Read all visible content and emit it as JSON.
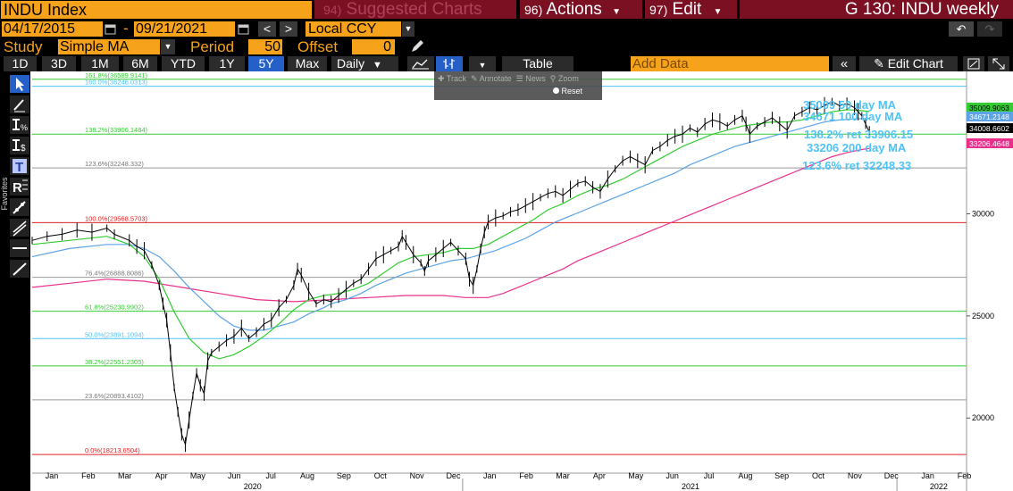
{
  "header": {
    "security": "INDU Index",
    "suggested_num": "94)",
    "suggested_label": "Suggested Charts",
    "actions_num": "96)",
    "actions_label": "Actions",
    "edit_num": "97)",
    "edit_label": "Edit",
    "chart_title": "G 130: INDU weekly"
  },
  "range": {
    "start_date": "04/17/2015",
    "separator": "-",
    "end_date": "09/21/2021",
    "currency": "Local CCY"
  },
  "study": {
    "study_label": "Study",
    "study_value": "Simple MA",
    "period_label": "Period",
    "period_value": "50",
    "offset_label": "Offset",
    "offset_value": "0"
  },
  "toolbar": {
    "tabs": [
      "1D",
      "3D",
      "1M",
      "6M",
      "YTD",
      "1Y",
      "5Y",
      "Max"
    ],
    "selected_tab": "5Y",
    "frequency": "Daily",
    "table_label": "Table",
    "add_data_placeholder": "Add Data",
    "edit_chart_label": "Edit Chart"
  },
  "popup": {
    "items": [
      "Track",
      "Annotate",
      "News",
      "Zoom"
    ],
    "reset_label": "Reset"
  },
  "side_tools": {
    "favorites_label": "Favorites",
    "tools": [
      "cursor",
      "line",
      "percent-change",
      "dollar-change",
      "text",
      "regression",
      "trend",
      "multi-line",
      "horizontal-line",
      "diagonal-line"
    ]
  },
  "chart_data": {
    "type": "line",
    "series": [
      {
        "name": "INDU Index",
        "color": "#000000"
      },
      {
        "name": "50 day MA",
        "color": "#33cc33"
      },
      {
        "name": "100 day MA",
        "color": "#5ba3e6"
      },
      {
        "name": "200 day MA",
        "color": "#e8308c"
      }
    ],
    "y_ticks": [
      "30000",
      "25000",
      "20000"
    ],
    "ylim": [
      17300,
      36800
    ],
    "x_months": [
      "Jan",
      "Feb",
      "Mar",
      "Apr",
      "May",
      "Jun",
      "Jul",
      "Aug",
      "Sep",
      "Oct",
      "Nov",
      "Dec",
      "Jan",
      "Feb",
      "Mar",
      "Apr",
      "May",
      "Jun",
      "Jul",
      "Aug",
      "Sep",
      "Oct",
      "Nov",
      "Dec",
      "Jan",
      "Feb"
    ],
    "x_years": [
      "2020",
      "2021",
      "2022"
    ],
    "fib_levels": [
      {
        "label": "161.8%(36589.9141)",
        "value": 36590,
        "color": "#33cc33"
      },
      {
        "label": "160.0%(36246.0313)",
        "value": 36246,
        "color": "#4fc3f7"
      },
      {
        "label": "138.2%(33906.1484)",
        "value": 33906,
        "color": "#33cc33"
      },
      {
        "label": "123.6%(32248.332)",
        "value": 32248,
        "color": "#999999"
      },
      {
        "label": "100.0%(29568.5703)",
        "value": 29569,
        "color": "#e02020"
      },
      {
        "label": "76.4%(26888.8086)",
        "value": 26889,
        "color": "#999999"
      },
      {
        "label": "61.8%(25230.9902)",
        "value": 25231,
        "color": "#33cc33"
      },
      {
        "label": "50.0%(23891.1094)",
        "value": 23891,
        "color": "#4fc3f7"
      },
      {
        "label": "38.2%(22551.2305)",
        "value": 22551,
        "color": "#33cc33"
      },
      {
        "label": "23.6%(20893.4102)",
        "value": 20893,
        "color": "#999999"
      },
      {
        "label": "0.0%(18213.6504)",
        "value": 18214,
        "color": "#e02020"
      }
    ],
    "annotations": [
      "35009 50 day MA",
      "34671 100 day MA",
      "138.2% ret 33906.15",
      "33206 200 day MA",
      "123.6% ret 32248.33"
    ],
    "last_values": [
      {
        "label": "35009.9063",
        "color": "#33cc33"
      },
      {
        "label": "34671.2148",
        "color": "#5ba3e6"
      },
      {
        "label": "34008.6602",
        "color": "#000000"
      },
      {
        "label": "33206.4648",
        "color": "#e8308c"
      }
    ],
    "price_points": [
      [
        0,
        28700
      ],
      [
        4,
        28900
      ],
      [
        8,
        29000
      ],
      [
        12,
        29200
      ],
      [
        16,
        29100
      ],
      [
        20,
        29300
      ],
      [
        22,
        29000
      ],
      [
        26,
        28700
      ],
      [
        28,
        28400
      ],
      [
        30,
        28200
      ],
      [
        32,
        27500
      ],
      [
        34,
        26500
      ],
      [
        35,
        25600
      ],
      [
        36,
        24800
      ],
      [
        37,
        23200
      ],
      [
        38,
        21500
      ],
      [
        39,
        20300
      ],
      [
        40,
        19200
      ],
      [
        41,
        18700
      ],
      [
        42,
        19900
      ],
      [
        43,
        21100
      ],
      [
        44,
        22200
      ],
      [
        45,
        21600
      ],
      [
        46,
        21200
      ],
      [
        47,
        22800
      ],
      [
        48,
        23200
      ],
      [
        50,
        23500
      ],
      [
        52,
        23800
      ],
      [
        54,
        24000
      ],
      [
        56,
        24400
      ],
      [
        58,
        23900
      ],
      [
        60,
        24200
      ],
      [
        62,
        24600
      ],
      [
        64,
        24800
      ],
      [
        66,
        25400
      ],
      [
        68,
        25800
      ],
      [
        70,
        26500
      ],
      [
        71,
        27300
      ],
      [
        72,
        27000
      ],
      [
        74,
        26200
      ],
      [
        76,
        25600
      ],
      [
        78,
        25800
      ],
      [
        80,
        25700
      ],
      [
        82,
        26000
      ],
      [
        84,
        26300
      ],
      [
        86,
        26600
      ],
      [
        88,
        26800
      ],
      [
        90,
        27300
      ],
      [
        92,
        27800
      ],
      [
        94,
        28000
      ],
      [
        96,
        28200
      ],
      [
        98,
        28400
      ],
      [
        99,
        28900
      ],
      [
        100,
        28600
      ],
      [
        102,
        28000
      ],
      [
        104,
        27600
      ],
      [
        105,
        27200
      ],
      [
        106,
        27700
      ],
      [
        108,
        28000
      ],
      [
        110,
        28300
      ],
      [
        112,
        28600
      ],
      [
        114,
        28200
      ],
      [
        116,
        27800
      ],
      [
        117,
        26800
      ],
      [
        118,
        26500
      ],
      [
        119,
        27300
      ],
      [
        120,
        28300
      ],
      [
        121,
        29100
      ],
      [
        122,
        29600
      ],
      [
        124,
        29800
      ],
      [
        126,
        29900
      ],
      [
        128,
        30100
      ],
      [
        130,
        30200
      ],
      [
        132,
        30400
      ],
      [
        134,
        30600
      ],
      [
        136,
        30800
      ],
      [
        138,
        31000
      ],
      [
        140,
        31100
      ],
      [
        142,
        30900
      ],
      [
        144,
        31200
      ],
      [
        146,
        31500
      ],
      [
        148,
        31600
      ],
      [
        150,
        31300
      ],
      [
        152,
        31100
      ],
      [
        154,
        31700
      ],
      [
        156,
        32200
      ],
      [
        158,
        32600
      ],
      [
        160,
        32800
      ],
      [
        162,
        32600
      ],
      [
        164,
        32400
      ],
      [
        166,
        33100
      ],
      [
        168,
        33300
      ],
      [
        170,
        33600
      ],
      [
        172,
        33800
      ],
      [
        174,
        33900
      ],
      [
        176,
        34200
      ],
      [
        178,
        34000
      ],
      [
        180,
        34400
      ],
      [
        182,
        34600
      ],
      [
        184,
        34500
      ],
      [
        186,
        34300
      ],
      [
        188,
        34600
      ],
      [
        190,
        34800
      ],
      [
        191,
        34400
      ],
      [
        192,
        33900
      ],
      [
        194,
        34300
      ],
      [
        196,
        34500
      ],
      [
        198,
        34700
      ],
      [
        200,
        34400
      ],
      [
        202,
        34100
      ],
      [
        204,
        34800
      ],
      [
        206,
        35000
      ],
      [
        208,
        35200
      ],
      [
        210,
        35100
      ],
      [
        212,
        35300
      ],
      [
        214,
        35500
      ],
      [
        216,
        35300
      ],
      [
        218,
        35400
      ],
      [
        220,
        35200
      ],
      [
        221,
        35000
      ],
      [
        222,
        34800
      ],
      [
        223,
        34400
      ],
      [
        224,
        34000
      ]
    ],
    "ma50_points": [
      [
        0,
        28500
      ],
      [
        10,
        28700
      ],
      [
        20,
        28900
      ],
      [
        26,
        28500
      ],
      [
        30,
        27900
      ],
      [
        34,
        26800
      ],
      [
        38,
        25200
      ],
      [
        42,
        23900
      ],
      [
        46,
        23200
      ],
      [
        50,
        22900
      ],
      [
        54,
        23100
      ],
      [
        58,
        23500
      ],
      [
        62,
        24000
      ],
      [
        66,
        24600
      ],
      [
        70,
        25300
      ],
      [
        74,
        25800
      ],
      [
        78,
        26000
      ],
      [
        82,
        26100
      ],
      [
        86,
        26300
      ],
      [
        90,
        26600
      ],
      [
        94,
        27100
      ],
      [
        98,
        27600
      ],
      [
        102,
        27900
      ],
      [
        106,
        28000
      ],
      [
        110,
        28100
      ],
      [
        114,
        28300
      ],
      [
        118,
        28300
      ],
      [
        122,
        28500
      ],
      [
        126,
        28900
      ],
      [
        130,
        29300
      ],
      [
        134,
        29700
      ],
      [
        138,
        30200
      ],
      [
        142,
        30500
      ],
      [
        146,
        30900
      ],
      [
        150,
        31200
      ],
      [
        154,
        31400
      ],
      [
        158,
        31700
      ],
      [
        162,
        32100
      ],
      [
        166,
        32500
      ],
      [
        170,
        32900
      ],
      [
        174,
        33300
      ],
      [
        178,
        33600
      ],
      [
        182,
        33900
      ],
      [
        186,
        34100
      ],
      [
        190,
        34300
      ],
      [
        194,
        34400
      ],
      [
        198,
        34500
      ],
      [
        202,
        34500
      ],
      [
        206,
        34600
      ],
      [
        210,
        34800
      ],
      [
        214,
        35000
      ],
      [
        218,
        35100
      ],
      [
        222,
        35050
      ],
      [
        224,
        35009
      ]
    ],
    "ma100_points": [
      [
        0,
        27900
      ],
      [
        10,
        28300
      ],
      [
        20,
        28500
      ],
      [
        26,
        28500
      ],
      [
        30,
        28300
      ],
      [
        34,
        27900
      ],
      [
        38,
        27200
      ],
      [
        42,
        26400
      ],
      [
        46,
        25700
      ],
      [
        50,
        25000
      ],
      [
        54,
        24500
      ],
      [
        58,
        24300
      ],
      [
        62,
        24300
      ],
      [
        66,
        24500
      ],
      [
        70,
        24700
      ],
      [
        74,
        25100
      ],
      [
        78,
        25400
      ],
      [
        80,
        25600
      ],
      [
        84,
        25800
      ],
      [
        88,
        26100
      ],
      [
        92,
        26500
      ],
      [
        96,
        26800
      ],
      [
        100,
        27100
      ],
      [
        104,
        27300
      ],
      [
        108,
        27500
      ],
      [
        112,
        27700
      ],
      [
        116,
        27800
      ],
      [
        120,
        28000
      ],
      [
        124,
        28200
      ],
      [
        128,
        28500
      ],
      [
        132,
        28800
      ],
      [
        136,
        29200
      ],
      [
        140,
        29600
      ],
      [
        144,
        29900
      ],
      [
        148,
        30200
      ],
      [
        152,
        30500
      ],
      [
        156,
        30800
      ],
      [
        160,
        31100
      ],
      [
        164,
        31400
      ],
      [
        168,
        31700
      ],
      [
        172,
        32000
      ],
      [
        176,
        32400
      ],
      [
        180,
        32700
      ],
      [
        184,
        33000
      ],
      [
        188,
        33300
      ],
      [
        192,
        33500
      ],
      [
        196,
        33700
      ],
      [
        200,
        33900
      ],
      [
        204,
        34100
      ],
      [
        208,
        34300
      ],
      [
        212,
        34500
      ],
      [
        216,
        34600
      ],
      [
        220,
        34650
      ],
      [
        224,
        34671
      ]
    ],
    "ma200_points": [
      [
        0,
        26400
      ],
      [
        10,
        26600
      ],
      [
        20,
        26800
      ],
      [
        30,
        26700
      ],
      [
        40,
        26400
      ],
      [
        50,
        26100
      ],
      [
        60,
        25800
      ],
      [
        70,
        25700
      ],
      [
        80,
        25800
      ],
      [
        90,
        25900
      ],
      [
        100,
        26000
      ],
      [
        110,
        26000
      ],
      [
        116,
        25900
      ],
      [
        122,
        25900
      ],
      [
        126,
        26100
      ],
      [
        130,
        26400
      ],
      [
        134,
        26700
      ],
      [
        138,
        27000
      ],
      [
        142,
        27300
      ],
      [
        146,
        27700
      ],
      [
        150,
        28000
      ],
      [
        154,
        28300
      ],
      [
        158,
        28600
      ],
      [
        162,
        28900
      ],
      [
        166,
        29200
      ],
      [
        170,
        29500
      ],
      [
        174,
        29800
      ],
      [
        178,
        30100
      ],
      [
        182,
        30400
      ],
      [
        186,
        30700
      ],
      [
        190,
        31000
      ],
      [
        194,
        31300
      ],
      [
        198,
        31600
      ],
      [
        202,
        31900
      ],
      [
        206,
        32200
      ],
      [
        210,
        32500
      ],
      [
        214,
        32800
      ],
      [
        218,
        33000
      ],
      [
        222,
        33150
      ],
      [
        224,
        33206
      ]
    ]
  }
}
